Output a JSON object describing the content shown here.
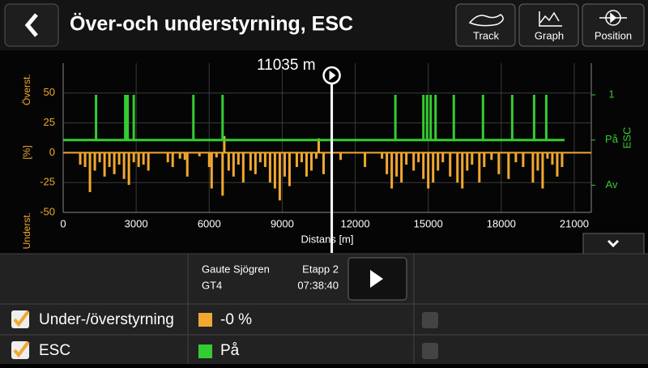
{
  "header": {
    "title": "Över-och understyrning, ESC",
    "buttons": [
      "Track",
      "Graph",
      "Position"
    ]
  },
  "chart_data": {
    "type": "bar-line",
    "xlabel": "Distans [m]",
    "ylabel": [
      "Underst.",
      "[%]",
      "Överst."
    ],
    "y2label": "ESC",
    "xlim": [
      0,
      21700
    ],
    "xticks": [
      0,
      3000,
      6000,
      9000,
      12000,
      15000,
      18000,
      21000
    ],
    "ylim": [
      -50,
      75
    ],
    "yticks": [
      -50,
      -25,
      0,
      25,
      50
    ],
    "y2lim": [
      -0.6,
      2.7
    ],
    "y2ticks": [
      {
        "value": 0,
        "label": "Av"
      },
      {
        "value": 1,
        "label": "På"
      },
      {
        "value": 2,
        "label": "1"
      }
    ],
    "grid": true,
    "cursor": {
      "x": 11035,
      "label": "11035 m"
    },
    "series": [
      {
        "type": "bar",
        "color": "#f0a830",
        "x": [
          700,
          900,
          1100,
          1300,
          1500,
          1700,
          1900,
          2100,
          2300,
          2500,
          2700,
          2900,
          3100,
          3300,
          3500,
          4300,
          4500,
          4800,
          5000,
          5100,
          5600,
          6000,
          6100,
          6300,
          6550,
          6620,
          6800,
          7000,
          7200,
          7400,
          7700,
          7900,
          8100,
          8300,
          8500,
          8700,
          8900,
          9100,
          9300,
          9600,
          9800,
          10000,
          10200,
          10400,
          10500,
          10700,
          11400,
          12400,
          13100,
          13300,
          13500,
          13700,
          13900,
          14100,
          14400,
          14600,
          14800,
          15000,
          15200,
          15400,
          15600,
          15900,
          16200,
          16400,
          16600,
          16800,
          17100,
          17300,
          17600,
          17900,
          18300,
          18600,
          18900,
          19300,
          19500,
          19700,
          19900,
          20100,
          20300,
          20500
        ],
        "values": [
          -10,
          -12,
          -33,
          -15,
          -8,
          -20,
          -12,
          -18,
          -10,
          -22,
          -27,
          -8,
          -12,
          -10,
          -15,
          -8,
          -12,
          -5,
          -6,
          -20,
          -3,
          -12,
          -30,
          -4,
          -36,
          14,
          -15,
          -20,
          -10,
          -25,
          -15,
          -18,
          -8,
          -12,
          -25,
          -30,
          -40,
          -20,
          -28,
          -12,
          -8,
          -20,
          -15,
          -5,
          12,
          -18,
          -6,
          -12,
          -5,
          -18,
          -30,
          -20,
          -25,
          -10,
          -15,
          -8,
          -22,
          -30,
          -25,
          -15,
          -8,
          -20,
          -25,
          -30,
          -15,
          -10,
          -25,
          -12,
          -6,
          -18,
          -22,
          -8,
          -12,
          -25,
          -15,
          -30,
          -5,
          -10,
          -20,
          -12
        ]
      },
      {
        "type": "line",
        "axis": "y2",
        "color": "#33cc33",
        "x": [
          0,
          1350,
          1350,
          1350,
          2550,
          2550,
          2550,
          2650,
          2650,
          2650,
          2900,
          2900,
          2900,
          5350,
          5350,
          5350,
          6550,
          6550,
          6550,
          13650,
          13650,
          13650,
          14800,
          14800,
          14800,
          14950,
          14950,
          14950,
          15100,
          15100,
          15100,
          15300,
          15300,
          15300,
          16050,
          16050,
          16050,
          17250,
          17250,
          17250,
          18450,
          18450,
          18450,
          19350,
          19350,
          19350,
          19850,
          19850,
          19850,
          20600
        ],
        "values": [
          1,
          1,
          2,
          1,
          1,
          2,
          1,
          1,
          2,
          1,
          1,
          2,
          1,
          1,
          2,
          1,
          1,
          2,
          1,
          1,
          2,
          1,
          1,
          2,
          1,
          1,
          2,
          1,
          1,
          2,
          1,
          1,
          2,
          1,
          1,
          2,
          1,
          1,
          2,
          1,
          1,
          2,
          1,
          1,
          2,
          1,
          1,
          2,
          1,
          1
        ]
      }
    ]
  },
  "panel": {
    "driver": "Gaute Sjögren",
    "car": "GT4",
    "stage": "Etapp 2",
    "time": "07:38:40",
    "rows": [
      {
        "label": "Under-/överstyrning",
        "value": "-0 %"
      },
      {
        "label": "ESC",
        "value": "På"
      }
    ]
  }
}
